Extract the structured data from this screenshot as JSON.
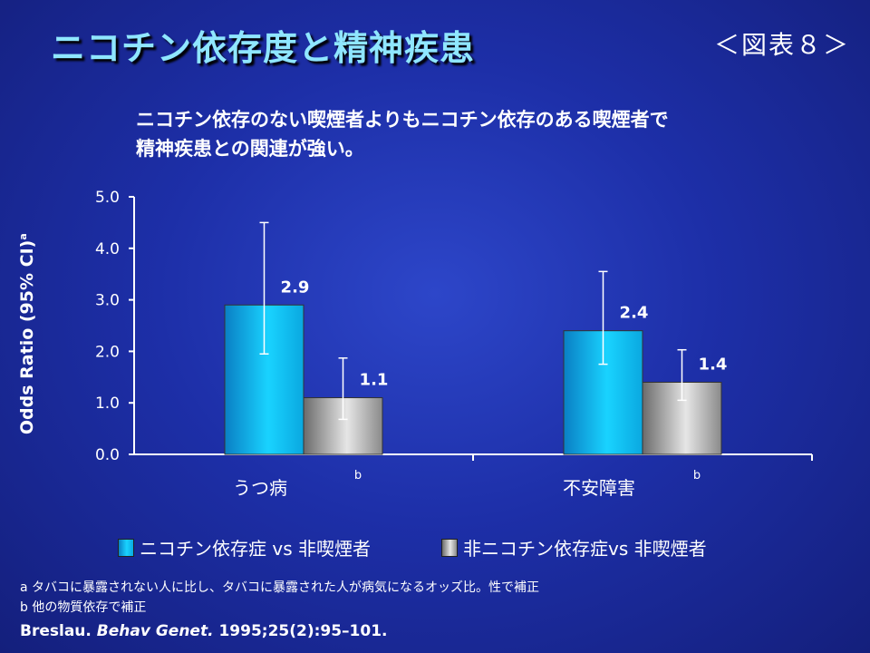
{
  "header": {
    "title": "ニコチン依存度と精神疾患",
    "figure_label": "＜図表８＞"
  },
  "subtitle": {
    "line1": "ニコチン依存のない喫煙者よりもニコチン依存のある喫煙者で",
    "line2": "精神疾患との関連が強い。"
  },
  "colors": {
    "background": "#1d2fa8",
    "title": "#8fe6ff",
    "series_nicotine": "#19d3ff",
    "series_non_nicotine": "#cfcfcf"
  },
  "chart_data": {
    "type": "bar",
    "ylabel": "Odds Ratio (95% CI)",
    "ylabel_superscript": "a",
    "ylim": [
      0,
      5
    ],
    "yticks": [
      "0.0",
      "1.0",
      "2.0",
      "3.0",
      "4.0",
      "5.0"
    ],
    "categories": [
      "うつ病",
      "不安障害"
    ],
    "category_notes": [
      "b",
      "b"
    ],
    "series": [
      {
        "name": "ニコチン依存症 vs 非喫煙者",
        "values": [
          2.9,
          2.4
        ],
        "labels": [
          "2.9",
          "2.4"
        ],
        "ci_low": [
          1.95,
          1.75
        ],
        "ci_high": [
          4.5,
          3.55
        ],
        "color": "#19d3ff"
      },
      {
        "name": "非ニコチン依存症vs 非喫煙者",
        "values": [
          1.1,
          1.4
        ],
        "labels": [
          "1.1",
          "1.4"
        ],
        "ci_low": [
          0.68,
          1.05
        ],
        "ci_high": [
          1.87,
          2.03
        ],
        "color": "#cfcfcf"
      }
    ],
    "grid": false,
    "legend_position": "bottom"
  },
  "notes": {
    "a": "a  タバコに暴露されない人に比し、タバコに暴露された人が病気になるオッズ比。性で補正",
    "b": "b  他の物質依存で補正"
  },
  "citation": {
    "author": "Breslau.",
    "journal": "Behav Genet.",
    "details": "1995;25(2):95–101."
  }
}
